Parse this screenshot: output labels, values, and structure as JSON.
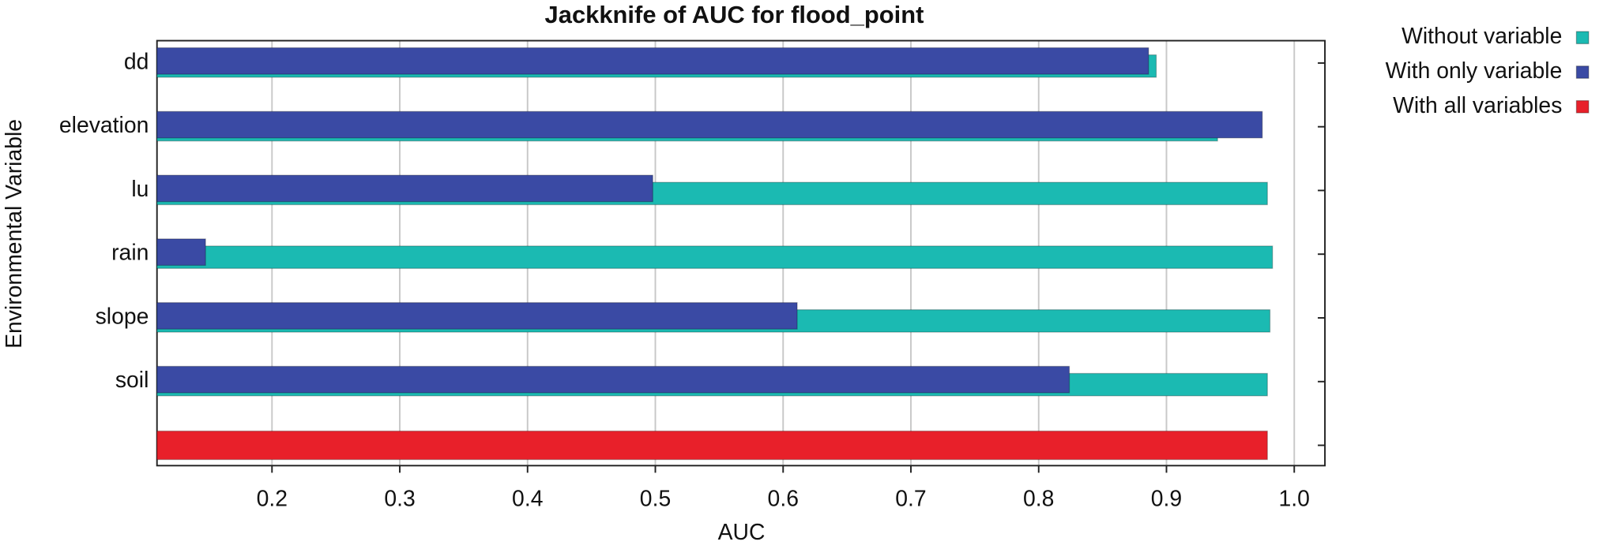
{
  "chart_data": {
    "type": "bar",
    "orientation": "horizontal",
    "title": "Jackknife of AUC for flood_point",
    "x_label": "AUC",
    "y_label": "Environmental Variable",
    "categories": [
      "dd",
      "elevation",
      "lu",
      "rain",
      "slope",
      "soil",
      null
    ],
    "series": [
      {
        "name": "Without variable",
        "color": "#1bbab2",
        "values": [
          0.892,
          0.94,
          0.979,
          0.983,
          0.981,
          0.979,
          null
        ]
      },
      {
        "name": "With only variable",
        "color": "#3a4aa4",
        "values": [
          0.886,
          0.975,
          0.498,
          0.148,
          0.611,
          0.824,
          null
        ]
      },
      {
        "name": "With all variables",
        "color": "#e8202a",
        "values": [
          null,
          null,
          null,
          null,
          null,
          null,
          0.979
        ]
      }
    ],
    "xlim": [
      0.11,
      1.024
    ],
    "xticks": [
      0.2,
      0.3,
      0.4,
      0.5,
      0.6,
      0.7,
      0.8,
      0.9,
      {
        "value": 1,
        "label": "1.0"
      }
    ],
    "grid": true,
    "legend": "right"
  }
}
